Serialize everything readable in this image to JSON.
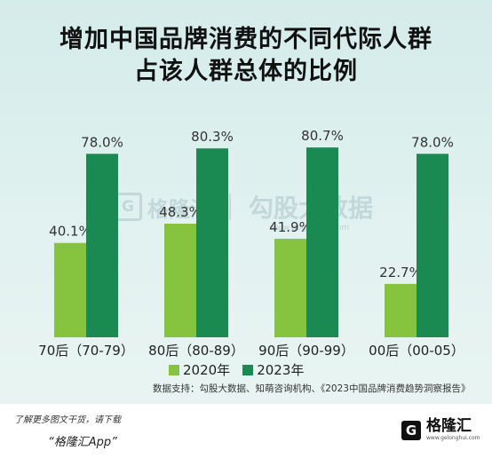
{
  "title_line1": "增加中国品牌消费的不同代际人群",
  "title_line2": "占该人群总体的比例",
  "chart_data": {
    "type": "bar",
    "title": "增加中国品牌消费的不同代际人群占该人群总体的比例",
    "categories": [
      "70后（70-79）",
      "80后（80-89）",
      "90后（90-99）",
      "00后（00-05）"
    ],
    "series": [
      {
        "name": "2020年",
        "values": [
          40.1,
          48.3,
          41.9,
          22.7
        ],
        "labels": [
          "40.1%",
          "48.3%",
          "41.9%",
          "22.7%"
        ],
        "color": "#86c440"
      },
      {
        "name": "2023年",
        "values": [
          78.0,
          80.3,
          80.7,
          78.0
        ],
        "labels": [
          "78.0%",
          "80.3%",
          "80.7%",
          "78.0%"
        ],
        "color": "#1a8a52"
      }
    ],
    "ylim": [
      0,
      100
    ],
    "grid": false,
    "legend_position": "bottom"
  },
  "source": "数据支持：勾股大数据、知萌咨询机构、《2023中国品牌消费趋势洞察报告》",
  "watermark": {
    "letter": "G",
    "brand": "格隆汇",
    "right": "勾股大数据",
    "url": "www.gogudata.com"
  },
  "footer": {
    "promo_line1": "了解更多图文干货，请下载",
    "promo_line2": "“格隆汇App”",
    "brand_letter": "G",
    "brand_name": "格隆汇",
    "brand_url": "www.gelonghui.com"
  }
}
